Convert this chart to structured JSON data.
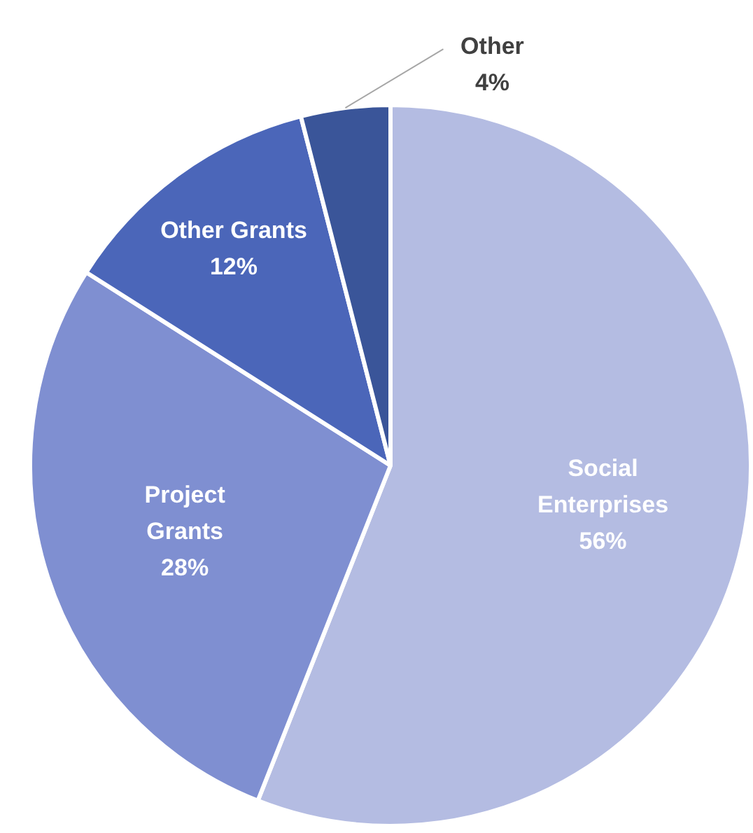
{
  "chart_data": {
    "type": "pie",
    "categories": [
      "Social Enterprises",
      "Project Grants",
      "Other Grants",
      "Other"
    ],
    "values": [
      56,
      28,
      12,
      4
    ],
    "colors": [
      "#b4bce2",
      "#7f8fd1",
      "#4b66b9",
      "#3a5599"
    ],
    "value_labels": [
      "56%",
      "28%",
      "12%",
      "4%"
    ],
    "legend": false
  }
}
